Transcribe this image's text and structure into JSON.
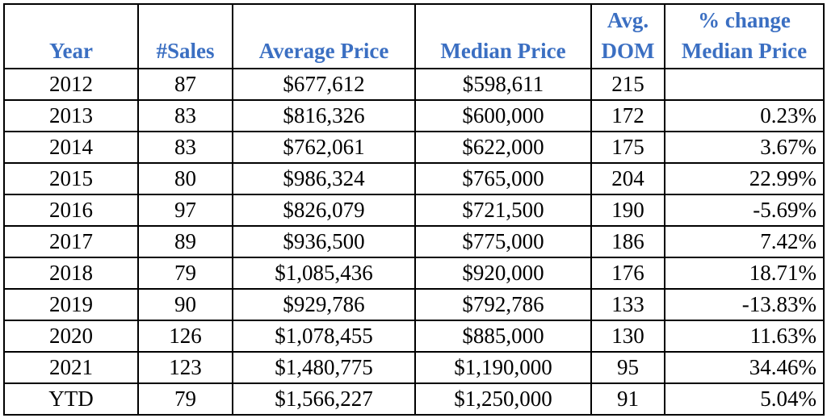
{
  "chart_data": {
    "type": "table",
    "columns": [
      {
        "lines": [
          "",
          "Year"
        ],
        "align": "c"
      },
      {
        "lines": [
          "",
          "#Sales"
        ],
        "align": "c"
      },
      {
        "lines": [
          "",
          "Average Price"
        ],
        "align": "c"
      },
      {
        "lines": [
          "",
          "Median Price"
        ],
        "align": "c"
      },
      {
        "lines": [
          "Avg.",
          "DOM"
        ],
        "align": "c"
      },
      {
        "lines": [
          "% change",
          "Median Price"
        ],
        "align": "r"
      }
    ],
    "rows": [
      [
        "2012",
        "87",
        "$677,612",
        "$598,611",
        "215",
        ""
      ],
      [
        "2013",
        "83",
        "$816,326",
        "$600,000",
        "172",
        "0.23%"
      ],
      [
        "2014",
        "83",
        "$762,061",
        "$622,000",
        "175",
        "3.67%"
      ],
      [
        "2015",
        "80",
        "$986,324",
        "$765,000",
        "204",
        "22.99%"
      ],
      [
        "2016",
        "97",
        "$826,079",
        "$721,500",
        "190",
        "-5.69%"
      ],
      [
        "2017",
        "89",
        "$936,500",
        "$775,000",
        "186",
        "7.42%"
      ],
      [
        "2018",
        "79",
        "$1,085,436",
        "$920,000",
        "176",
        "18.71%"
      ],
      [
        "2019",
        "90",
        "$929,786",
        "$792,786",
        "133",
        "-13.83%"
      ],
      [
        "2020",
        "126",
        "$1,078,455",
        "$885,000",
        "130",
        "11.63%"
      ],
      [
        "2021",
        "123",
        "$1,480,775",
        "$1,190,000",
        "95",
        "34.46%"
      ],
      [
        "YTD",
        "79",
        "$1,566,227",
        "$1,250,000",
        "91",
        "5.04%"
      ]
    ],
    "colors": {
      "header_text": "#3b6fc2",
      "body_text": "#000000",
      "border": "#000000"
    }
  }
}
